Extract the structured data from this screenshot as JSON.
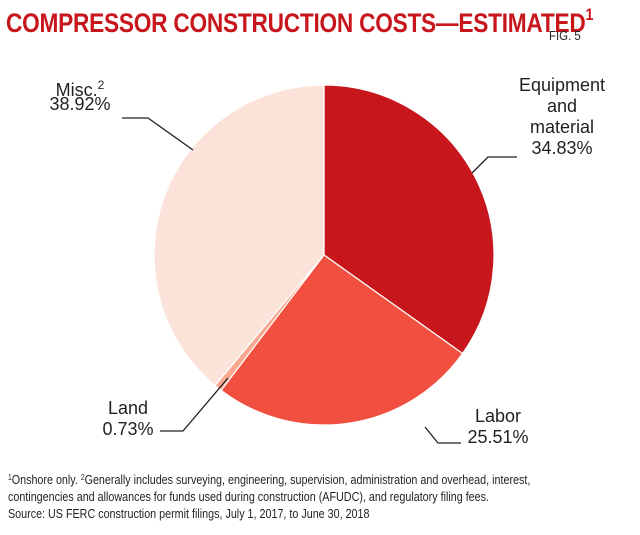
{
  "header": {
    "title": "COMPRESSOR CONSTRUCTION COSTS—ESTIMATED",
    "title_sup": "1",
    "fig_label": "FIG. 5"
  },
  "chart_data": {
    "type": "pie",
    "title": "COMPRESSOR CONSTRUCTION COSTS—ESTIMATED",
    "unit": "%",
    "slices": [
      {
        "label_lines": [
          "Equipment",
          "and",
          "material"
        ],
        "value": 34.83,
        "value_text": "34.83%",
        "color": "#c8161d"
      },
      {
        "label_lines": [
          "Labor"
        ],
        "value": 25.51,
        "value_text": "25.51%",
        "color": "#f15040"
      },
      {
        "label_lines": [
          "Land"
        ],
        "value": 0.73,
        "value_text": "0.73%",
        "color": "#f9a890"
      },
      {
        "label_lines": [
          "Misc."
        ],
        "label_sup": "2",
        "value": 38.92,
        "value_text": "38.92%",
        "color": "#fce3da"
      }
    ]
  },
  "footnote": {
    "line1_sup_a": "1",
    "line1_a": "Onshore only. ",
    "line1_sup_b": "2",
    "line1_b": "Generally includes surveying, engineering, supervision, administration and overhead, interest,",
    "line2": "contingencies and allowances for funds used during construction (AFUDC), and regulatory filing fees.",
    "line3": "Source: US FERC construction permit filings, July 1, 2017, to June 30, 2018"
  }
}
